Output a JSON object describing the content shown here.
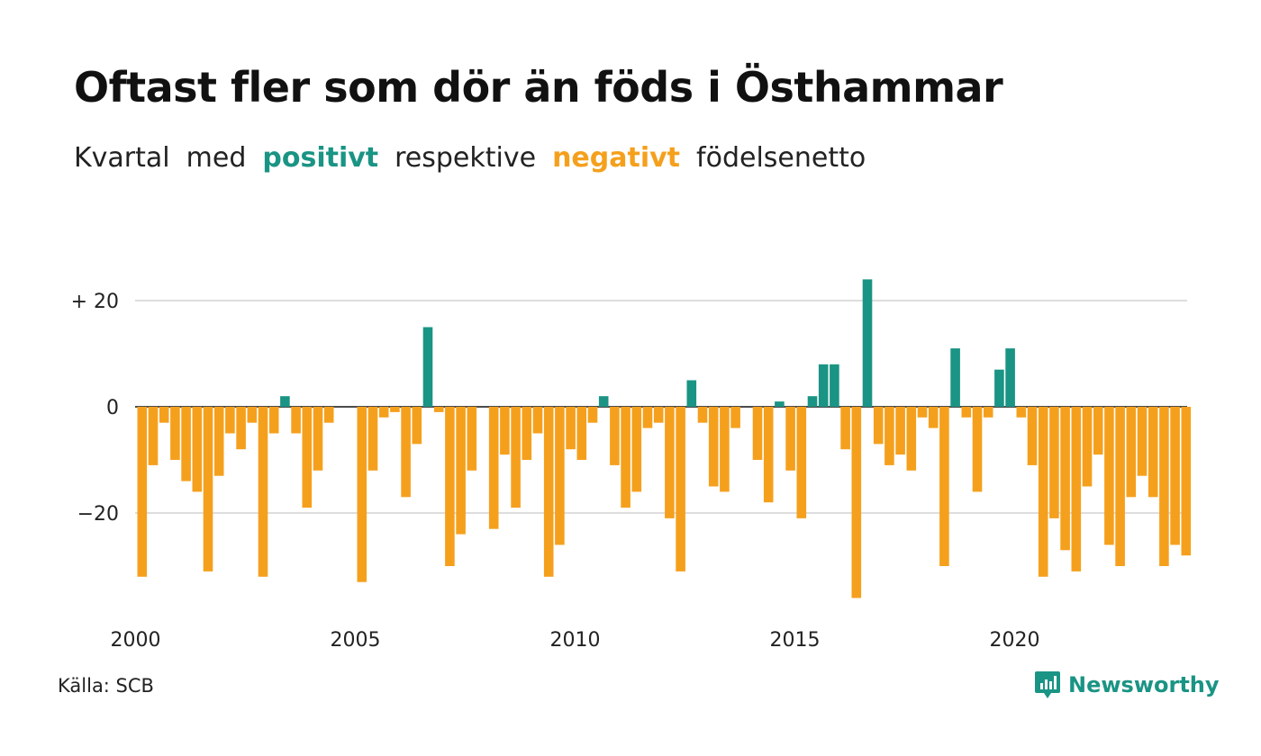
{
  "title": "Oftast fler som dör än föds i Östhammar",
  "subtitle": {
    "part1": "Kvartal",
    "part2": "med",
    "positive": "positivt",
    "part3": "respektive",
    "negative": "negativt",
    "part4": "födelsenetto"
  },
  "source": "Källa: SCB",
  "logo": {
    "text": "Newsworthy",
    "icon": "newsworthy-chart-icon"
  },
  "colors": {
    "positive": "#1a9484",
    "negative": "#f5a01d",
    "grid": "#dddddd"
  },
  "chart_data": {
    "type": "bar",
    "title": "Oftast fler som dör än föds i Östhammar",
    "subtitle": "Kvartal med positivt respektive negativt födelsenetto",
    "x_start": "2000 Q1",
    "x_ticks": [
      "2000",
      "2005",
      "2010",
      "2015",
      "2020"
    ],
    "y_ticks": [
      {
        "value": 20,
        "label": "+ 20"
      },
      {
        "value": 0,
        "label": "0"
      },
      {
        "value": -20,
        "label": "−20"
      }
    ],
    "ylim": [
      -38,
      25
    ],
    "grid": "horizontal",
    "values": [
      -32,
      -11,
      -3,
      -10,
      -14,
      -16,
      -31,
      -13,
      -5,
      -8,
      -3,
      -32,
      -5,
      2,
      -5,
      -19,
      -12,
      -3,
      0,
      0,
      -33,
      -12,
      -2,
      -1,
      -17,
      -7,
      15,
      -1,
      -30,
      -24,
      -12,
      0,
      -23,
      -9,
      -19,
      -10,
      -5,
      -32,
      -26,
      -8,
      -10,
      -3,
      2,
      -11,
      -19,
      -16,
      -4,
      -3,
      -21,
      -31,
      5,
      -3,
      -15,
      -16,
      -4,
      0,
      -10,
      -18,
      1,
      -12,
      -21,
      2,
      8,
      8,
      -8,
      -36,
      24,
      -7,
      -11,
      -9,
      -12,
      -2,
      -4,
      -30,
      11,
      -2,
      -16,
      -2,
      7,
      11,
      -2,
      -11,
      -32,
      -21,
      -27,
      -31,
      -15,
      -9,
      -26,
      -30,
      -17,
      -13,
      -17,
      -30,
      -26,
      -28
    ]
  }
}
